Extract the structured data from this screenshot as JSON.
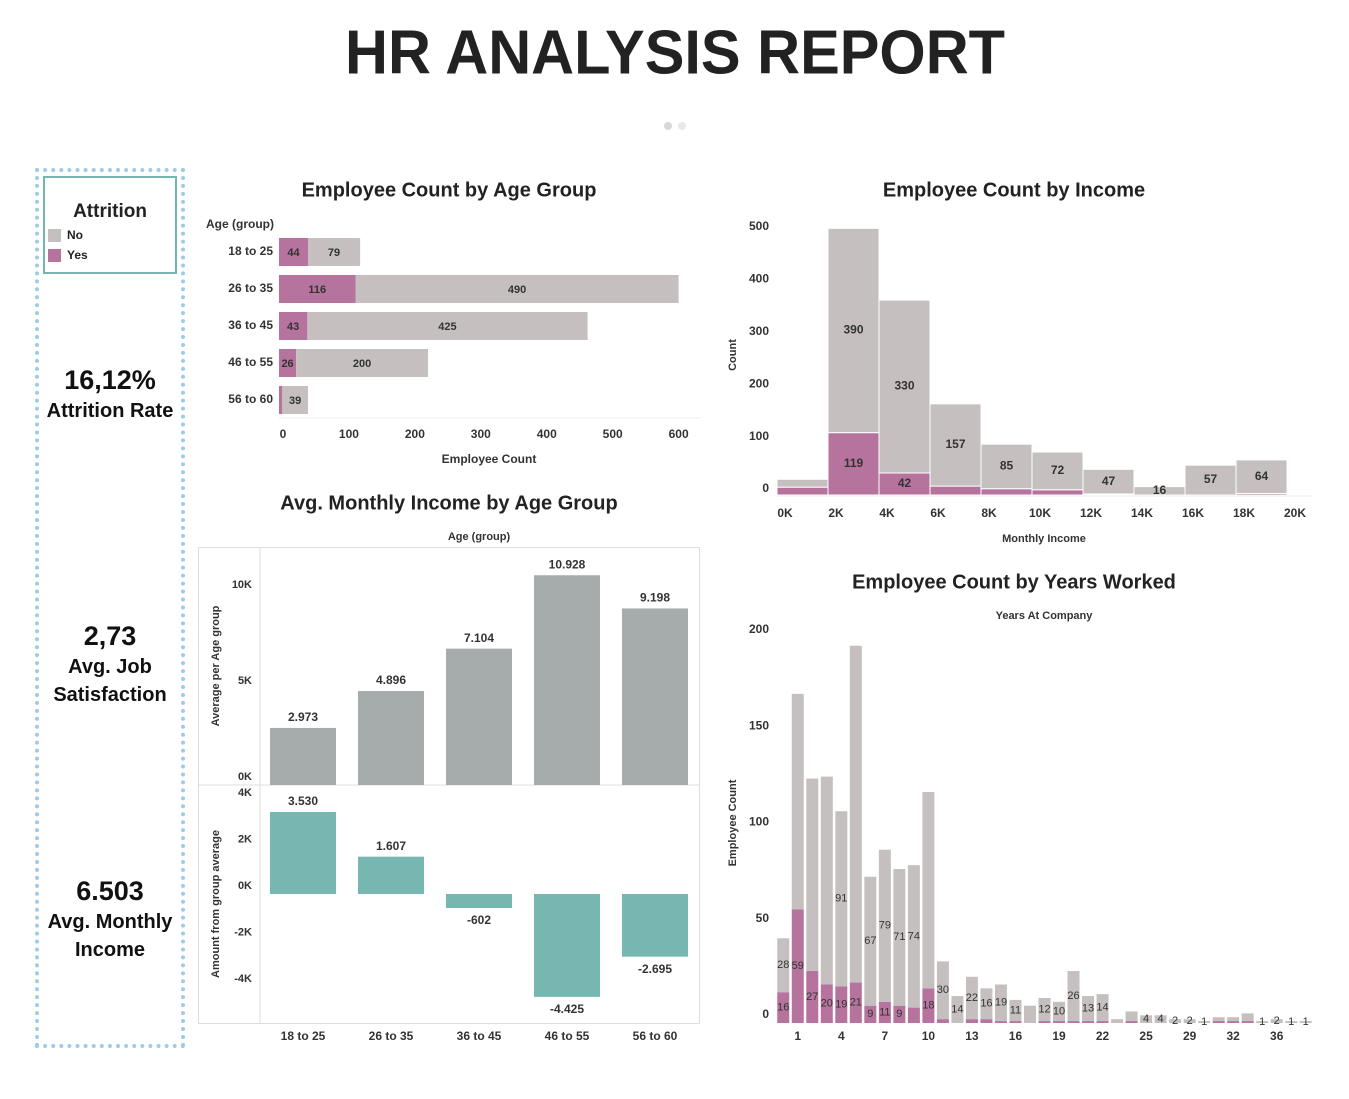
{
  "header": {
    "title": "HR ANALYSIS REPORT"
  },
  "legend_title": "Attrition",
  "kpis": [
    {
      "value": "16,12%",
      "label": "Attrition Rate"
    },
    {
      "value": "2,73",
      "label": "Avg. Job Satisfaction"
    },
    {
      "value": "6.503",
      "label": "Avg. Monthly Income"
    }
  ],
  "chart_data": [
    {
      "type": "hbar_stacked",
      "title": "Employee Count by Age Group",
      "ylabel": "Age (group)",
      "xlabel": "Employee Count",
      "categories": [
        "18 to 25",
        "26 to 35",
        "36 to 45",
        "46 to 55",
        "56 to 60"
      ],
      "series": [
        {
          "name": "No",
          "color": "#c5c0bf",
          "values": [
            79,
            490,
            425,
            200,
            39
          ]
        },
        {
          "name": "Yes",
          "color": "#b5739d",
          "values": [
            44,
            116,
            43,
            26,
            5
          ],
          "value_labels": [
            "44",
            "116",
            "43",
            "26",
            null
          ]
        }
      ],
      "xlim": [
        0,
        640
      ],
      "xticks": [
        0,
        100,
        200,
        300,
        400,
        500,
        600
      ]
    },
    {
      "type": "histogram",
      "title": "Employee Count by Income",
      "xlabel": "Monthly Income",
      "ylabel": "Count",
      "bins": [
        0,
        2000,
        4000,
        6000,
        8000,
        10000,
        12000,
        14000,
        16000,
        18000,
        20000
      ],
      "series": [
        {
          "name": "No",
          "color": "#c5c0bf",
          "values": [
            15,
            390,
            330,
            157,
            85,
            72,
            47,
            16,
            57,
            64
          ],
          "value_labels": [
            null,
            "390",
            "330",
            "157",
            "85",
            "72",
            "47",
            "16",
            "57",
            "64"
          ]
        },
        {
          "name": "Yes",
          "color": "#b5739d",
          "values": [
            15,
            119,
            42,
            17,
            12,
            10,
            2,
            0,
            0,
            3
          ],
          "value_labels": [
            null,
            "119",
            "42",
            null,
            null,
            null,
            null,
            null,
            null,
            null
          ]
        }
      ],
      "xlim": [
        0,
        21000
      ],
      "xticks": [
        {
          "value": 0,
          "label": "0K"
        },
        {
          "value": 2000,
          "label": "2K"
        },
        {
          "value": 4000,
          "label": "4K"
        },
        {
          "value": 6000,
          "label": "6K"
        },
        {
          "value": 8000,
          "label": "8K"
        },
        {
          "value": 10000,
          "label": "10K"
        },
        {
          "value": 12000,
          "label": "12K"
        },
        {
          "value": 14000,
          "label": "14K"
        },
        {
          "value": 16000,
          "label": "16K"
        },
        {
          "value": 18000,
          "label": "18K"
        },
        {
          "value": 20000,
          "label": "20K"
        }
      ],
      "ylim": [
        0,
        535
      ],
      "yticks": [
        0,
        100,
        200,
        300,
        400,
        500
      ]
    },
    {
      "type": "dual_bar",
      "title": "Avg. Monthly Income by Age Group",
      "xlabel": "Age (group)",
      "categories": [
        "18 to 25",
        "26 to 35",
        "36 to 45",
        "46 to 55",
        "56 to 60"
      ],
      "panels": [
        {
          "ylabel": "Average per Age group",
          "color": "#a6acab",
          "values": [
            2973,
            4896,
            7104,
            10928,
            9198
          ],
          "value_labels": [
            "2.973",
            "4.896",
            "7.104",
            "10.928",
            "9.198"
          ],
          "ylim": [
            0,
            12400
          ],
          "yticks": [
            {
              "value": 0,
              "label": "0K"
            },
            {
              "value": 5000,
              "label": "5K"
            },
            {
              "value": 10000,
              "label": "10K"
            }
          ]
        },
        {
          "ylabel": "Amount from group average",
          "color": "#76b7b2",
          "values": [
            3530,
            1607,
            -602,
            -4425,
            -2695
          ],
          "value_labels": [
            "3.530",
            "1.607",
            "-602",
            "-4.425",
            "-2.695"
          ],
          "ylim": [
            -5550,
            4690
          ],
          "yticks": [
            {
              "value": -4000,
              "label": "-4K"
            },
            {
              "value": -2000,
              "label": "-2K"
            },
            {
              "value": 0,
              "label": "0K"
            },
            {
              "value": 2000,
              "label": "2K"
            },
            {
              "value": 4000,
              "label": "4K"
            }
          ]
        }
      ]
    },
    {
      "type": "bar_stacked",
      "title": "Employee Count by Years Worked",
      "xlabel": "Years At Company",
      "ylabel": "Employee Count",
      "categories": [
        null,
        "1",
        null,
        null,
        "4",
        null,
        null,
        "7",
        null,
        null,
        "10",
        null,
        null,
        "13",
        null,
        null,
        "16",
        null,
        null,
        "19",
        null,
        null,
        "22",
        null,
        null,
        "25",
        null,
        null,
        "29",
        null,
        null,
        "32",
        null,
        null,
        "36",
        null,
        null
      ],
      "series": [
        {
          "name": "No",
          "color": "#c5c0bf",
          "values": [
            28,
            112,
            100,
            108,
            91,
            175,
            67,
            79,
            71,
            74,
            102,
            30,
            14,
            22,
            16,
            19,
            11,
            9,
            12,
            10,
            26,
            13,
            14,
            2,
            5,
            4,
            4,
            2,
            2,
            1,
            2,
            2,
            4,
            1,
            2,
            1,
            1
          ],
          "value_labels": [
            "28",
            null,
            null,
            null,
            "91",
            null,
            "67",
            "79",
            "71",
            "74",
            null,
            "30",
            "14",
            "22",
            "16",
            "19",
            "11",
            null,
            "12",
            "10",
            "26",
            "13",
            "14",
            null,
            null,
            "4",
            "4",
            "2",
            "2",
            "1",
            null,
            null,
            null,
            "1",
            "2",
            "1",
            "1"
          ]
        },
        {
          "name": "Yes",
          "color": "#b5739d",
          "values": [
            16,
            59,
            27,
            20,
            19,
            21,
            9,
            11,
            9,
            8,
            18,
            2,
            0,
            2,
            2,
            1,
            1,
            0,
            1,
            1,
            1,
            1,
            1,
            0,
            1,
            0,
            0,
            0,
            0,
            0,
            1,
            1,
            1,
            0,
            0,
            0,
            0
          ],
          "value_labels": [
            "16",
            "59",
            "27",
            "20",
            "19",
            "21",
            "9",
            "11",
            "9",
            null,
            "18",
            null,
            null,
            null,
            null,
            null,
            null,
            null,
            null,
            null,
            null,
            null,
            null,
            null,
            null,
            null,
            null,
            null,
            null,
            null,
            null,
            null,
            null,
            null,
            null,
            null,
            null
          ]
        }
      ],
      "ylim": [
        0,
        204
      ],
      "yticks": [
        0,
        50,
        100,
        150,
        200
      ]
    }
  ]
}
